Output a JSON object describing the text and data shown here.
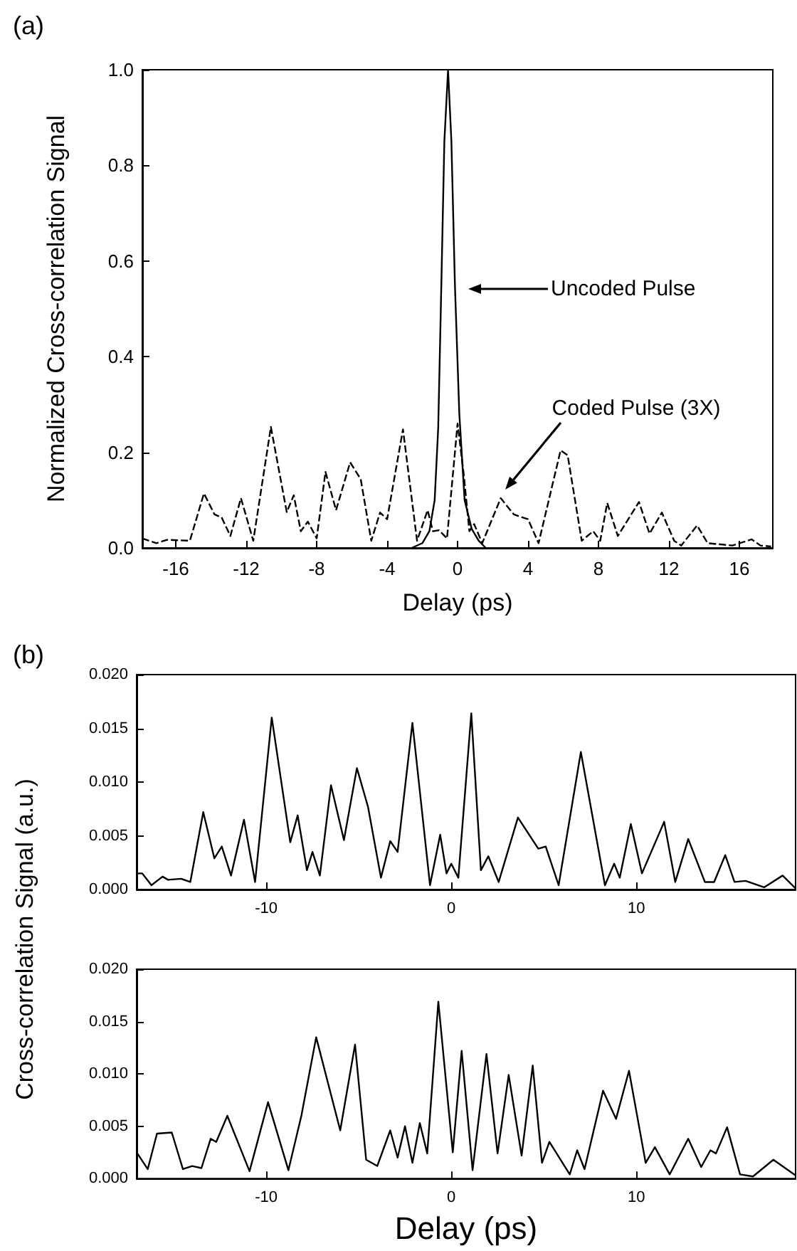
{
  "chart_data": [
    {
      "type": "line",
      "title": "(a)",
      "xlabel": "Delay (ps)",
      "ylabel": "Normalized Cross-correlation Signal",
      "marker": "none",
      "xlim": [
        -17.9,
        17.9
      ],
      "xticks": [
        -16,
        -12,
        -8,
        -4,
        0,
        4,
        8,
        12,
        16
      ],
      "ylim": [
        0,
        1
      ],
      "yticks": [
        {
          "value": 0,
          "label": "0.0"
        },
        0.2,
        0.4,
        0.6,
        0.8,
        {
          "value": 1,
          "label": "1.0"
        }
      ],
      "annotations": [
        "Uncoded Pulse",
        "Coded Pulse (3X)"
      ],
      "series": [
        {
          "color": "#000000",
          "line_style": "dashed",
          "x": [
            -17.9,
            -17.1,
            -16.5,
            -15.2,
            -14.4,
            -13.8,
            -13.4,
            -12.9,
            -12.3,
            -11.6,
            -10.6,
            -9.7,
            -9.3,
            -8.9,
            -8.5,
            -8.0,
            -7.5,
            -6.9,
            -6.1,
            -5.5,
            -4.9,
            -4.4,
            -4.0,
            -3.1,
            -2.3,
            -1.7,
            -1.4,
            -1.05,
            -0.6,
            0.0,
            0.35,
            0.67,
            0.94,
            1.4,
            2.45,
            3.2,
            4.0,
            4.6,
            5.85,
            6.25,
            7.05,
            7.7,
            8.1,
            8.5,
            9.1,
            10.3,
            10.9,
            11.6,
            12.3,
            12.7,
            13.6,
            14.2,
            15.6,
            16.7,
            17.2,
            17.8
          ],
          "values": [
            0.02,
            0.01,
            0.017,
            0.015,
            0.114,
            0.07,
            0.064,
            0.025,
            0.104,
            0.015,
            0.253,
            0.075,
            0.11,
            0.035,
            0.055,
            0.02,
            0.159,
            0.079,
            0.179,
            0.144,
            0.015,
            0.074,
            0.06,
            0.248,
            0.015,
            0.079,
            0.035,
            0.037,
            0.02,
            0.26,
            0.154,
            0.035,
            0.05,
            0.01,
            0.104,
            0.07,
            0.06,
            0.01,
            0.204,
            0.194,
            0.015,
            0.035,
            0.015,
            0.094,
            0.025,
            0.096,
            0.03,
            0.074,
            0.015,
            0.005,
            0.047,
            0.01,
            0.005,
            0.018,
            0.005,
            0.003
          ]
        },
        {
          "color": "#000000",
          "line_style": "solid",
          "x": [
            -2.6,
            -2.0,
            -1.6,
            -1.3,
            -1.1,
            -0.95,
            -0.75,
            -0.54,
            -0.35,
            -0.15,
            0.1,
            0.4,
            0.8,
            1.2,
            1.6
          ],
          "values": [
            0.0,
            0.01,
            0.035,
            0.1,
            0.25,
            0.5,
            0.85,
            1.0,
            0.85,
            0.55,
            0.28,
            0.1,
            0.04,
            0.015,
            0.0
          ]
        }
      ]
    },
    {
      "type": "line",
      "title": "(b)",
      "ylabel": "Cross-correlation Signal (a.u.)",
      "marker": "none",
      "xlim": [
        -17,
        18.6
      ],
      "xticks": [
        -10,
        0,
        10
      ],
      "ylim": [
        0,
        0.02
      ],
      "yticks": [
        {
          "value": 0,
          "label": "0.000"
        },
        0.005,
        {
          "value": 0.01,
          "label": "0.010"
        },
        0.015,
        {
          "value": 0.02,
          "label": "0.020"
        }
      ],
      "series": [
        {
          "color": "#000000",
          "x": [
            -17.0,
            -16.7,
            -16.2,
            -15.6,
            -15.3,
            -14.6,
            -14.1,
            -13.4,
            -12.8,
            -12.4,
            -11.9,
            -11.2,
            -10.6,
            -9.7,
            -8.7,
            -8.3,
            -7.8,
            -7.5,
            -7.1,
            -6.5,
            -5.8,
            -5.1,
            -4.5,
            -3.8,
            -3.3,
            -2.9,
            -2.1,
            -1.15,
            -0.6,
            -0.26,
            0.0,
            0.38,
            1.08,
            1.6,
            2.0,
            2.56,
            3.6,
            4.7,
            5.1,
            5.8,
            7.0,
            8.3,
            8.8,
            9.1,
            9.7,
            10.3,
            11.5,
            12.1,
            12.8,
            13.7,
            14.2,
            14.8,
            15.3,
            15.9,
            16.9,
            17.9,
            18.6
          ],
          "values": [
            0.0015,
            0.0015,
            0.0004,
            0.0012,
            0.0009,
            0.001,
            0.0007,
            0.0072,
            0.0029,
            0.004,
            0.0013,
            0.0065,
            0.0007,
            0.016,
            0.0044,
            0.0069,
            0.0018,
            0.0035,
            0.0013,
            0.0097,
            0.0046,
            0.0113,
            0.0077,
            0.0011,
            0.0045,
            0.0035,
            0.0155,
            0.0004,
            0.0051,
            0.0015,
            0.0024,
            0.0011,
            0.0164,
            0.0018,
            0.0031,
            0.0007,
            0.0067,
            0.0038,
            0.004,
            0.0004,
            0.0128,
            0.0004,
            0.0024,
            0.0011,
            0.0061,
            0.0015,
            0.0063,
            0.0007,
            0.0047,
            0.0007,
            0.0007,
            0.0032,
            0.0007,
            0.0008,
            0.0002,
            0.0013,
            0.0001
          ]
        }
      ]
    },
    {
      "type": "line",
      "xlabel": "Delay (ps)",
      "marker": "none",
      "xlim": [
        -17,
        18.6
      ],
      "xticks": [
        -10,
        0,
        10
      ],
      "ylim": [
        0,
        0.02
      ],
      "yticks": [
        {
          "value": 0,
          "label": "0.000"
        },
        0.005,
        {
          "value": 0.01,
          "label": "0.010"
        },
        0.015,
        {
          "value": 0.02,
          "label": "0.020"
        }
      ],
      "series": [
        {
          "color": "#000000",
          "x": [
            -17.0,
            -16.4,
            -15.9,
            -15.1,
            -14.5,
            -14.0,
            -13.5,
            -13.0,
            -12.7,
            -12.1,
            -10.9,
            -9.9,
            -8.8,
            -8.1,
            -7.3,
            -6.0,
            -5.2,
            -4.6,
            -4.0,
            -3.3,
            -2.9,
            -2.5,
            -2.1,
            -1.7,
            -1.3,
            -0.7,
            0.08,
            0.56,
            1.15,
            1.9,
            2.5,
            3.1,
            3.8,
            4.4,
            4.9,
            5.3,
            6.4,
            6.8,
            7.2,
            8.2,
            8.9,
            9.6,
            10.5,
            11.0,
            11.8,
            12.8,
            13.5,
            14.0,
            14.3,
            14.9,
            15.6,
            16.3,
            17.4,
            18.6
          ],
          "values": [
            0.0025,
            0.0009,
            0.0043,
            0.0044,
            0.0009,
            0.0012,
            0.001,
            0.0038,
            0.0035,
            0.006,
            0.0007,
            0.0073,
            0.0008,
            0.006,
            0.0135,
            0.0046,
            0.0128,
            0.0018,
            0.0012,
            0.0046,
            0.002,
            0.005,
            0.0015,
            0.0053,
            0.0024,
            0.0169,
            0.0025,
            0.0122,
            0.0008,
            0.0119,
            0.0024,
            0.0099,
            0.0022,
            0.0108,
            0.0015,
            0.0035,
            0.0004,
            0.0027,
            0.0009,
            0.0084,
            0.0057,
            0.0103,
            0.0015,
            0.003,
            0.0004,
            0.0038,
            0.0011,
            0.0027,
            0.0024,
            0.0049,
            0.0004,
            0.0002,
            0.0018,
            0.0003
          ]
        }
      ]
    }
  ]
}
